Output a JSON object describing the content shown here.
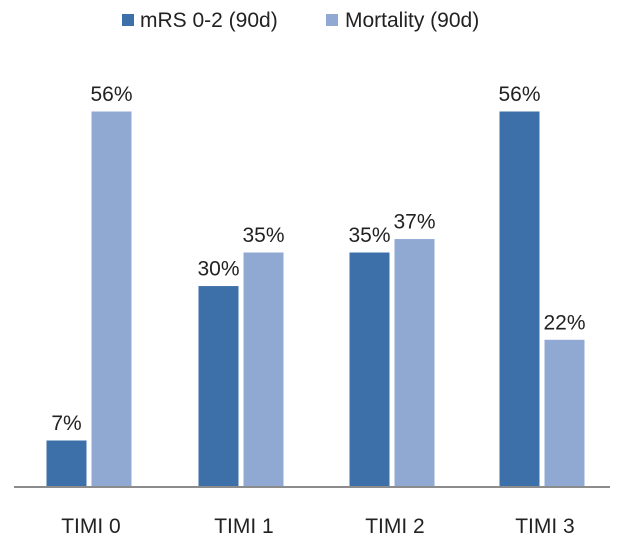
{
  "chart_data": {
    "type": "bar",
    "categories": [
      "TIMI 0",
      "TIMI 1",
      "TIMI 2",
      "TIMI 3"
    ],
    "series": [
      {
        "name": "mRS 0-2 (90d)",
        "values": [
          7,
          30,
          35,
          56
        ],
        "labels": [
          "7%",
          "30%",
          "35%",
          "56%"
        ],
        "color": "#3d6fa8"
      },
      {
        "name": "Mortality (90d)",
        "values": [
          56,
          35,
          37,
          22
        ],
        "labels": [
          "56%",
          "35%",
          "37%",
          "22%"
        ],
        "color": "#8fa9d3"
      }
    ],
    "unit": "%",
    "ylim": [
      0,
      56
    ],
    "grid": false,
    "legend_position": "top"
  }
}
